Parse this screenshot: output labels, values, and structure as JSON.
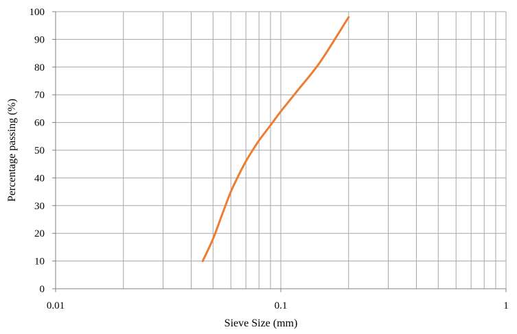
{
  "chart_data": {
    "type": "line",
    "xlabel": "Sieve Size (mm)",
    "ylabel": "Percentage passing (%)",
    "x_scale": "log",
    "xlim": [
      0.01,
      1
    ],
    "ylim": [
      0,
      100
    ],
    "x_ticks": [
      "0.01",
      "0.1",
      "1"
    ],
    "y_ticks": [
      "0",
      "10",
      "20",
      "30",
      "40",
      "50",
      "60",
      "70",
      "80",
      "90",
      "100"
    ],
    "grid": true,
    "legend": "none",
    "series": [
      {
        "color": "#ed7d31",
        "points": [
          {
            "x": 0.045,
            "y": 10
          },
          {
            "x": 0.05,
            "y": 18
          },
          {
            "x": 0.055,
            "y": 27
          },
          {
            "x": 0.06,
            "y": 35
          },
          {
            "x": 0.065,
            "y": 41
          },
          {
            "x": 0.07,
            "y": 46
          },
          {
            "x": 0.075,
            "y": 50
          },
          {
            "x": 0.08,
            "y": 53.5
          },
          {
            "x": 0.09,
            "y": 59
          },
          {
            "x": 0.1,
            "y": 64
          },
          {
            "x": 0.12,
            "y": 72
          },
          {
            "x": 0.15,
            "y": 82
          },
          {
            "x": 0.2,
            "y": 98
          }
        ]
      }
    ]
  }
}
